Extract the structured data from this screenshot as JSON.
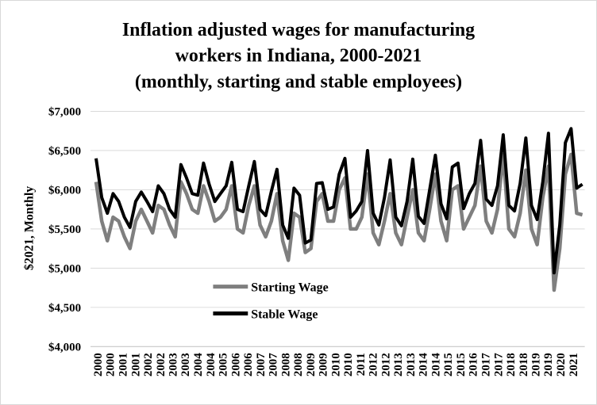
{
  "chart_data": {
    "type": "line",
    "title_lines": [
      "Inflation adjusted wages for manufacturing",
      "workers in Indiana, 2000-2021",
      "(monthly, starting and stable employees)"
    ],
    "ylabel": "$2021, Monthly",
    "xlabel": "",
    "ylim": [
      4000,
      7000
    ],
    "yticks": [
      4000,
      4500,
      5000,
      5500,
      6000,
      6500,
      7000
    ],
    "ytick_labels": [
      "$4,000",
      "$4,500",
      "$5,000",
      "$5,500",
      "$6,000",
      "$6,500",
      "$7,000"
    ],
    "x_tick_labels": [
      "2000",
      "2000",
      "2001",
      "2001",
      "2002",
      "2002",
      "2003",
      "2003",
      "2004",
      "2004",
      "2005",
      "2006",
      "2006",
      "2007",
      "2007",
      "2008",
      "2008",
      "2009",
      "2009",
      "2010",
      "2010",
      "2011",
      "2012",
      "2012",
      "2013",
      "2013",
      "2014",
      "2014",
      "2015",
      "2015",
      "2016",
      "2017",
      "2017",
      "2018",
      "2018",
      "2019",
      "2019",
      "2020",
      "2021"
    ],
    "grid": "horizontal",
    "legend": "bottom-center",
    "colors": {
      "starting": "#7f7f7f",
      "stable": "#000000"
    },
    "series": [
      {
        "name": "Starting Wage",
        "values": [
          6100,
          5600,
          5350,
          5650,
          5600,
          5400,
          5250,
          5600,
          5750,
          5600,
          5450,
          5800,
          5750,
          5550,
          5400,
          6100,
          5950,
          5750,
          5700,
          6050,
          5850,
          5600,
          5650,
          5750,
          6050,
          5500,
          5450,
          5800,
          6050,
          5550,
          5400,
          5600,
          5950,
          5350,
          5100,
          5700,
          5650,
          5200,
          5250,
          5850,
          5950,
          5600,
          5600,
          6000,
          6150,
          5500,
          5500,
          5650,
          6200,
          5450,
          5300,
          5600,
          5950,
          5450,
          5300,
          5650,
          6000,
          5450,
          5350,
          5750,
          6200,
          5600,
          5350,
          6000,
          6050,
          5500,
          5650,
          5800,
          6300,
          5600,
          5450,
          5750,
          6450,
          5500,
          5400,
          5700,
          6250,
          5500,
          5300,
          5900,
          6300,
          4720,
          5250,
          6200,
          6450,
          5700,
          5680
        ]
      },
      {
        "name": "Stable Wage",
        "values": [
          6400,
          5900,
          5700,
          5950,
          5850,
          5650,
          5520,
          5850,
          5970,
          5850,
          5720,
          6050,
          5950,
          5750,
          5650,
          6320,
          6150,
          5950,
          5930,
          6340,
          6070,
          5850,
          5950,
          6050,
          6350,
          5750,
          5720,
          6050,
          6360,
          5750,
          5670,
          5980,
          6260,
          5550,
          5380,
          6020,
          5930,
          5320,
          5360,
          6080,
          6090,
          5750,
          5780,
          6200,
          6400,
          5650,
          5730,
          5850,
          6500,
          5700,
          5550,
          5900,
          6380,
          5650,
          5540,
          5850,
          6390,
          5660,
          5570,
          6000,
          6440,
          5820,
          5630,
          6290,
          6340,
          5760,
          5950,
          6080,
          6630,
          5880,
          5800,
          6050,
          6700,
          5800,
          5730,
          6080,
          6660,
          5800,
          5620,
          6100,
          6720,
          4940,
          5550,
          6600,
          6780,
          6020,
          6070
        ]
      }
    ]
  }
}
